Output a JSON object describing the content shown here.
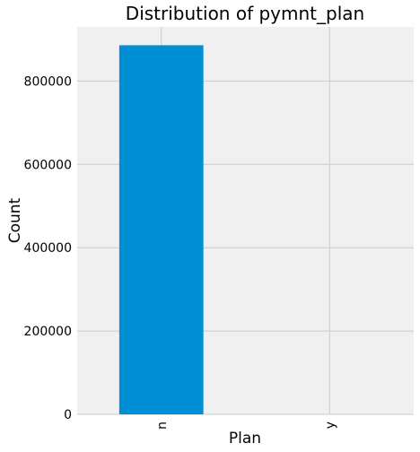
{
  "chart_data": {
    "type": "bar",
    "title": "Distribution of pymnt_plan",
    "xlabel": "Plan",
    "ylabel": "Count",
    "categories": [
      "n",
      "y"
    ],
    "values": [
      886000,
      10
    ],
    "ylim": [
      0,
      930000
    ],
    "yticks": [
      0,
      200000,
      400000,
      600000,
      800000
    ],
    "ytick_labels": [
      "0",
      "200000",
      "400000",
      "600000",
      "800000"
    ],
    "grid": true,
    "colors": {
      "bar": "#008fd5",
      "plot_bg": "#f0f0f0",
      "grid": "#cbcbcb",
      "page_bg": "#ffffff"
    }
  }
}
